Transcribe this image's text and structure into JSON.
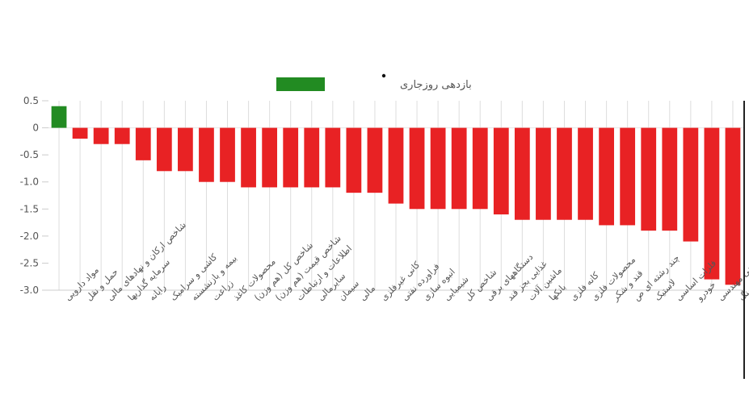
{
  "chart_data": {
    "type": "bar",
    "series": [
      {
        "name": "بازدهی روزجاری",
        "values": [
          0.4,
          -0.2,
          -0.3,
          -0.3,
          -0.6,
          -0.8,
          -0.8,
          -1.0,
          -1.0,
          -1.1,
          -1.1,
          -1.1,
          -1.1,
          -1.1,
          -1.2,
          -1.2,
          -1.4,
          -1.5,
          -1.5,
          -1.5,
          -1.5,
          -1.6,
          -1.7,
          -1.7,
          -1.7,
          -1.7,
          -1.8,
          -1.8,
          -1.9,
          -1.9,
          -2.1,
          -2.8,
          -2.9
        ]
      }
    ],
    "categories": [
      "مواد دارویی",
      "حمل و نقل",
      "شاخص ارکان و نهادهای مالی",
      "سرمایه گذاریها",
      "رایانه",
      "کاشی و سرامیک",
      "بیمه و بازنشسته",
      "زراعت",
      "محصولات کاغذ",
      "شاخص کل (هم وزن)",
      "شاخص قیمت (هم وزن)",
      "اطلاعات و ارتباطات",
      "سایرمالی",
      "سیمان",
      "مالی",
      "کانی غیرفلزی",
      "فراورده نفتی",
      "انبوه سازی",
      "شیمیایی",
      "شاخص کل",
      "دستگاههای برقی",
      "غذایی بجز قند",
      "ماشین آلات",
      "بانکها",
      "کانه فلزی",
      "محصولات فلزی",
      "قند و شکر",
      "چند رشته ای ص",
      "لاستیک",
      "فلزات اساسی",
      "خودرو",
      "فنی مهندسی",
      "ذغال سنگ"
    ],
    "yticks": [
      "0.5",
      "0",
      "-0.5",
      "-1.0",
      "-1.5",
      "-2.0",
      "-2.5",
      "-3.0"
    ],
    "ylim": [
      -3.0,
      0.5
    ],
    "legend": {
      "label": "بازدهی روزجاری",
      "color": "#228B22",
      "placement": "top-center"
    },
    "colors": {
      "positive": "#228B22",
      "negative": "#E82224",
      "grid": "#dddddd",
      "axis": "#cccccc"
    },
    "grid": true
  }
}
